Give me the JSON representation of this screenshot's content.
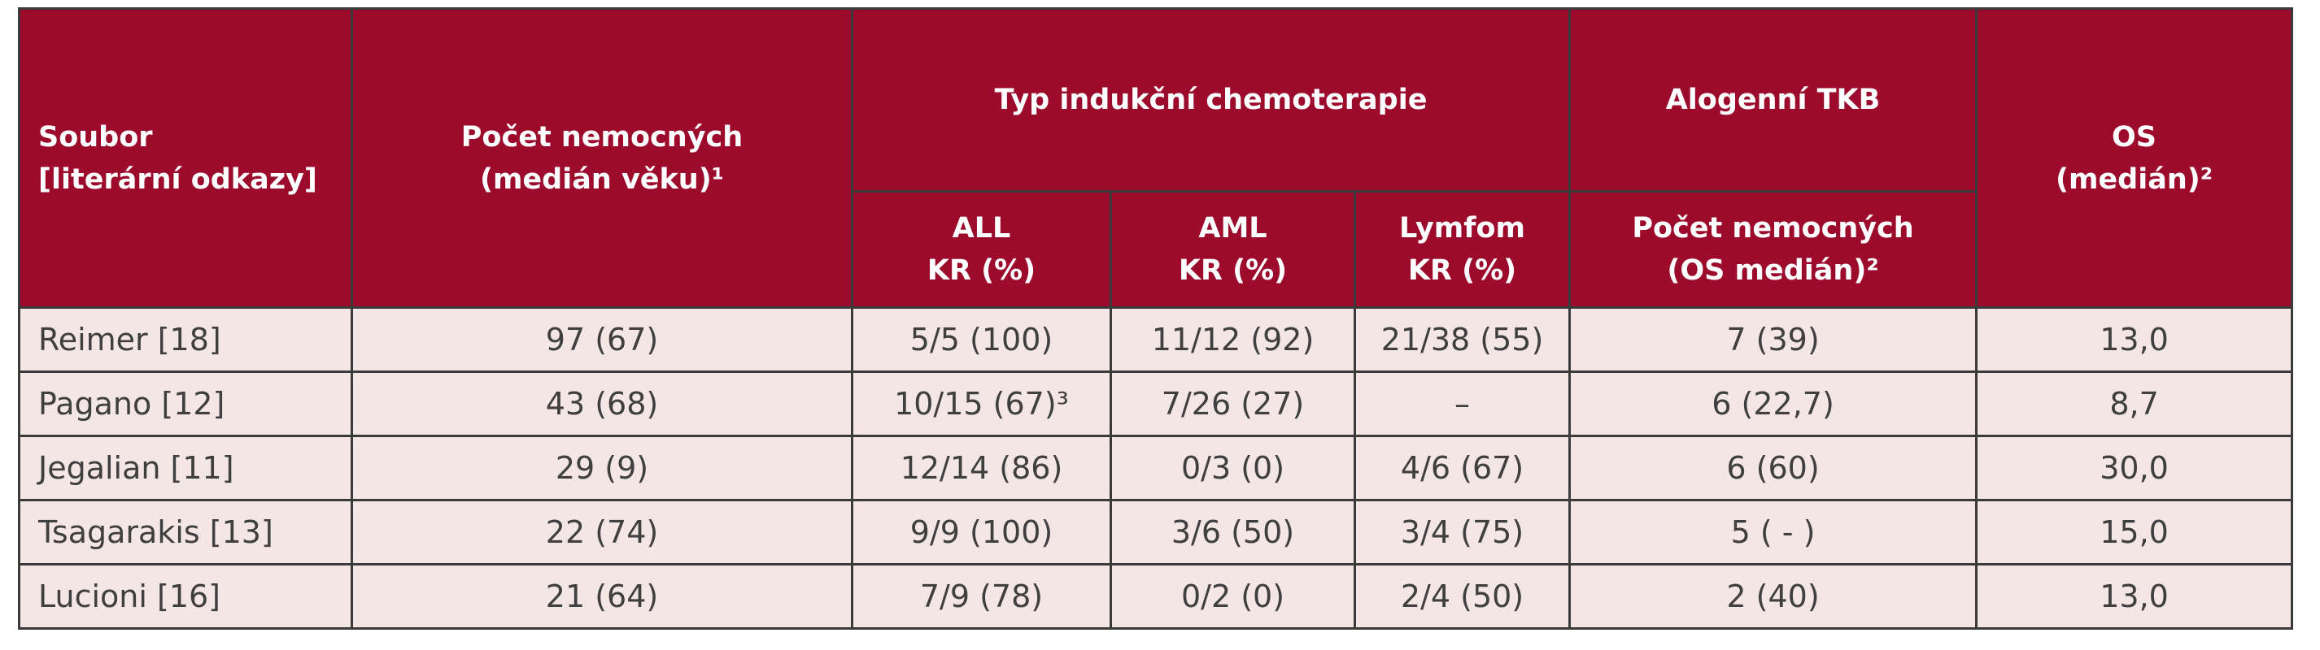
{
  "table": {
    "header": {
      "soubor": [
        "Soubor",
        "[literární odkazy]"
      ],
      "pocet": [
        "Počet nemocných",
        "(medián věku)¹"
      ],
      "typ": "Typ indukční chemoterapie",
      "alo": "Alogenní TKB",
      "os": [
        "OS",
        "(medián)²"
      ],
      "all": [
        "ALL",
        "KR (%)"
      ],
      "aml": [
        "AML",
        "KR (%)"
      ],
      "lymfom": [
        "Lymfom",
        "KR (%)"
      ],
      "alo_pocet": [
        "Počet nemocných",
        "(OS medián)²"
      ]
    },
    "rows": [
      [
        "Reimer [18]",
        "97 (67)",
        "5/5 (100)",
        "11/12 (92)",
        "21/38 (55)",
        "7 (39)",
        "13,0"
      ],
      [
        "Pagano [12]",
        "43 (68)",
        "10/15 (67)³",
        "7/26 (27)",
        "–",
        "6 (22,7)",
        "8,7"
      ],
      [
        "Jegalian [11]",
        "29 (9)",
        "12/14 (86)",
        "0/3 (0)",
        "4/6 (67)",
        "6 (60)",
        "30,0"
      ],
      [
        "Tsagarakis [13]",
        "22 (74)",
        "9/9 (100)",
        "3/6 (50)",
        "3/4 (75)",
        "5 ( - )",
        "15,0"
      ],
      [
        "Lucioni [16]",
        "21 (64)",
        "7/9 (78)",
        "0/2 (0)",
        "2/4 (50)",
        "2 (40)",
        "13,0"
      ]
    ]
  }
}
